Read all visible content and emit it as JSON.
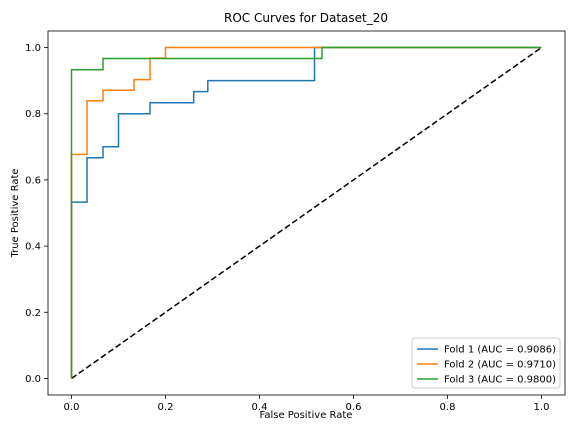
{
  "chart_data": {
    "type": "line",
    "title": "ROC Curves for Dataset_20",
    "xlabel": "False Positive Rate",
    "ylabel": "True Positive Rate",
    "xlim": [
      -0.05,
      1.05
    ],
    "ylim": [
      -0.05,
      1.05
    ],
    "xticks": [
      "0.0",
      "0.2",
      "0.4",
      "0.6",
      "0.8",
      "1.0"
    ],
    "yticks": [
      "0.0",
      "0.2",
      "0.4",
      "0.6",
      "0.8",
      "1.0"
    ],
    "grid": false,
    "legend_position": "lower-right",
    "series": [
      {
        "name": "Fold 1 (AUC = 0.9086)",
        "color": "#1f77b4",
        "x": [
          0,
          0,
          0.033,
          0.033,
          0.067,
          0.067,
          0.1,
          0.1,
          0.167,
          0.167,
          0.26,
          0.26,
          0.29,
          0.29,
          0.517,
          0.517,
          1.0
        ],
        "y": [
          0,
          0.533,
          0.533,
          0.667,
          0.667,
          0.7,
          0.7,
          0.8,
          0.8,
          0.833,
          0.833,
          0.867,
          0.867,
          0.9,
          0.9,
          1.0,
          1.0
        ]
      },
      {
        "name": "Fold 2 (AUC = 0.9710)",
        "color": "#ff7f0e",
        "x": [
          0,
          0,
          0.033,
          0.033,
          0.067,
          0.067,
          0.133,
          0.133,
          0.167,
          0.167,
          0.2,
          0.2,
          1.0
        ],
        "y": [
          0,
          0.677,
          0.677,
          0.839,
          0.839,
          0.871,
          0.871,
          0.903,
          0.903,
          0.968,
          0.968,
          1.0,
          1.0
        ]
      },
      {
        "name": "Fold 3 (AUC = 0.9800)",
        "color": "#2ca02c",
        "x": [
          0,
          0,
          0.067,
          0.067,
          0.533,
          0.533,
          1.0
        ],
        "y": [
          0,
          0.933,
          0.933,
          0.967,
          0.967,
          1.0,
          1.0
        ]
      }
    ],
    "reference_line": {
      "x": [
        0,
        1
      ],
      "y": [
        0,
        1
      ],
      "color": "#000000",
      "style": "dashed"
    }
  }
}
